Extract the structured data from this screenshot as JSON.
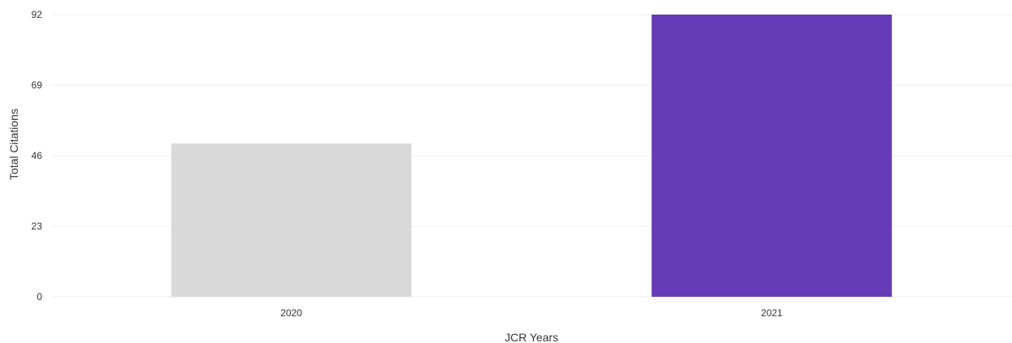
{
  "chart_data": {
    "type": "bar",
    "categories": [
      "2020",
      "2021"
    ],
    "values": [
      50,
      92
    ],
    "bar_colors": [
      "#d9d9d9",
      "#673ab7"
    ],
    "xlabel": "JCR Years",
    "ylabel": "Total Citations",
    "ylim": [
      0,
      92
    ],
    "yticks": [
      0,
      23,
      46,
      69,
      92
    ],
    "grid": true,
    "grid_color": "#ededed",
    "legend": "none"
  }
}
